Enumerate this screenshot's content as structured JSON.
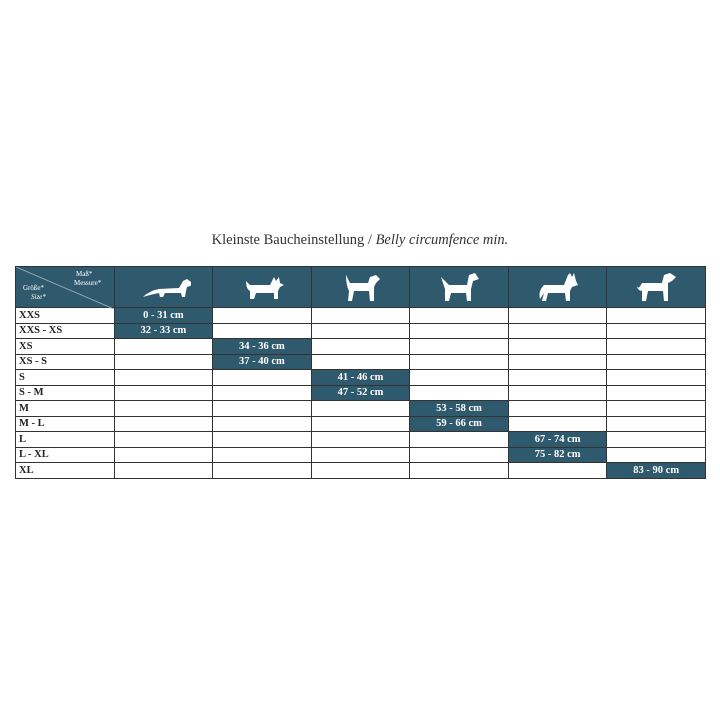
{
  "title": {
    "de": "Kleinste Baucheinstellung",
    "sep": " / ",
    "en": "Belly circumfence min."
  },
  "corner": {
    "measure_de": "Maß*",
    "measure_en": "Messure*",
    "size_de": "Größe*",
    "size_en": "Size*"
  },
  "columns": [
    "dachshund-icon",
    "terrier-icon",
    "jack-russell-icon",
    "schnauzer-icon",
    "shepherd-icon",
    "great-dane-icon"
  ],
  "colors": {
    "accent": "#2f5a6d"
  },
  "rows": [
    {
      "size": "XXS",
      "col": 0,
      "value": "0 - 31 cm"
    },
    {
      "size": "XXS - XS",
      "col": 0,
      "value": "32 - 33 cm"
    },
    {
      "size": "XS",
      "col": 1,
      "value": "34 - 36 cm"
    },
    {
      "size": "XS - S",
      "col": 1,
      "value": "37 - 40 cm"
    },
    {
      "size": "S",
      "col": 2,
      "value": "41 - 46 cm"
    },
    {
      "size": "S - M",
      "col": 2,
      "value": "47 - 52 cm"
    },
    {
      "size": "M",
      "col": 3,
      "value": "53 - 58 cm"
    },
    {
      "size": "M - L",
      "col": 3,
      "value": "59 - 66 cm"
    },
    {
      "size": "L",
      "col": 4,
      "value": "67 - 74 cm"
    },
    {
      "size": "L - XL",
      "col": 4,
      "value": "75 - 82 cm"
    },
    {
      "size": "XL",
      "col": 5,
      "value": "83 - 90 cm"
    }
  ]
}
